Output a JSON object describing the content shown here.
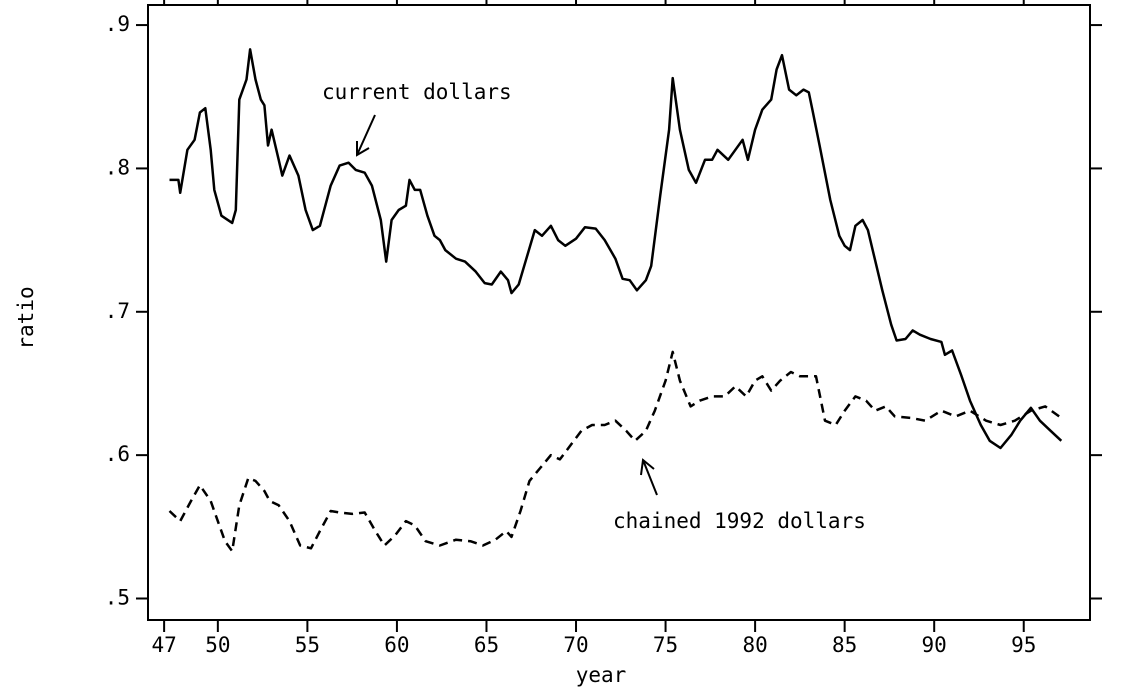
{
  "chart_data": {
    "type": "line",
    "xlabel": "year",
    "ylabel": "ratio",
    "xlim": [
      46.1,
      98.7
    ],
    "xticks": [
      47,
      50,
      55,
      60,
      65,
      70,
      75,
      80,
      85,
      90,
      95
    ],
    "ylim": [
      0.485,
      0.914
    ],
    "yticks": [
      {
        "value": 0.5,
        "label": ".5"
      },
      {
        "value": 0.6,
        "label": ".6"
      },
      {
        "value": 0.7,
        "label": ".7"
      },
      {
        "value": 0.8,
        "label": ".8"
      },
      {
        "value": 0.9,
        "label": ".9"
      }
    ],
    "grid": false,
    "series": [
      {
        "name": "current dollars",
        "color": "#000000",
        "dash": false,
        "x": [
          47.3,
          47.8,
          47.9,
          48.3,
          48.7,
          49.0,
          49.3,
          49.6,
          49.8,
          50.2,
          50.8,
          51.0,
          51.2,
          51.6,
          51.8,
          52.1,
          52.4,
          52.6,
          52.8,
          53.0,
          53.4,
          53.6,
          54.0,
          54.5,
          54.9,
          55.3,
          55.7,
          56.3,
          56.8,
          57.3,
          57.7,
          58.2,
          58.6,
          59.1,
          59.4,
          59.7,
          60.1,
          60.5,
          60.7,
          61.0,
          61.3,
          61.7,
          62.1,
          62.4,
          62.7,
          63.3,
          63.8,
          64.4,
          64.9,
          65.3,
          65.8,
          66.2,
          66.4,
          66.8,
          67.2,
          67.7,
          68.1,
          68.6,
          69.0,
          69.4,
          70.0,
          70.5,
          71.1,
          71.6,
          72.2,
          72.6,
          73.0,
          73.4,
          73.9,
          74.2,
          74.7,
          75.2,
          75.4,
          75.8,
          76.3,
          76.7,
          77.2,
          77.6,
          77.9,
          78.5,
          78.9,
          79.3,
          79.6,
          80.0,
          80.4,
          80.9,
          81.2,
          81.5,
          81.9,
          82.3,
          82.7,
          83.0,
          83.2,
          83.6,
          84.2,
          84.7,
          85.0,
          85.3,
          85.6,
          86.0,
          86.3,
          86.7,
          87.1,
          87.6,
          87.9,
          88.4,
          88.8,
          89.2,
          89.8,
          90.4,
          90.6,
          91.0,
          91.5,
          92.0,
          92.6,
          93.1,
          93.7,
          94.3,
          94.8,
          95.4,
          95.9,
          96.5,
          97.1
        ],
        "values": [
          0.792,
          0.792,
          0.783,
          0.813,
          0.82,
          0.839,
          0.842,
          0.813,
          0.785,
          0.767,
          0.762,
          0.771,
          0.848,
          0.862,
          0.883,
          0.862,
          0.848,
          0.844,
          0.816,
          0.827,
          0.806,
          0.795,
          0.809,
          0.795,
          0.771,
          0.757,
          0.76,
          0.788,
          0.802,
          0.804,
          0.799,
          0.797,
          0.788,
          0.764,
          0.735,
          0.764,
          0.771,
          0.774,
          0.792,
          0.785,
          0.785,
          0.767,
          0.753,
          0.75,
          0.743,
          0.737,
          0.735,
          0.728,
          0.72,
          0.719,
          0.728,
          0.722,
          0.713,
          0.719,
          0.736,
          0.757,
          0.753,
          0.76,
          0.75,
          0.746,
          0.751,
          0.759,
          0.758,
          0.75,
          0.737,
          0.723,
          0.722,
          0.715,
          0.722,
          0.732,
          0.781,
          0.827,
          0.863,
          0.827,
          0.799,
          0.79,
          0.806,
          0.806,
          0.813,
          0.806,
          0.813,
          0.82,
          0.806,
          0.827,
          0.841,
          0.848,
          0.869,
          0.879,
          0.855,
          0.851,
          0.855,
          0.853,
          0.841,
          0.816,
          0.778,
          0.753,
          0.746,
          0.743,
          0.76,
          0.764,
          0.757,
          0.736,
          0.715,
          0.691,
          0.68,
          0.681,
          0.687,
          0.684,
          0.681,
          0.679,
          0.67,
          0.673,
          0.656,
          0.638,
          0.621,
          0.61,
          0.605,
          0.614,
          0.624,
          0.633,
          0.624,
          0.617,
          0.61
        ]
      },
      {
        "name": "chained 1992 dollars",
        "color": "#000000",
        "dash": true,
        "x": [
          47.3,
          47.9,
          48.5,
          49.0,
          49.6,
          50.0,
          50.4,
          50.8,
          51.2,
          51.7,
          52.1,
          52.6,
          52.9,
          53.4,
          54.0,
          54.6,
          55.2,
          55.7,
          56.3,
          56.8,
          57.5,
          58.2,
          58.8,
          59.3,
          59.9,
          60.5,
          61.0,
          61.6,
          62.4,
          63.3,
          64.1,
          64.8,
          65.5,
          66.1,
          66.4,
          66.9,
          67.4,
          68.0,
          68.6,
          69.1,
          69.7,
          70.3,
          70.9,
          71.6,
          72.2,
          72.8,
          73.3,
          73.9,
          74.4,
          75.0,
          75.4,
          75.8,
          76.4,
          76.9,
          77.6,
          78.3,
          78.9,
          79.5,
          80.0,
          80.4,
          80.9,
          81.4,
          82.0,
          82.5,
          83.4,
          83.9,
          84.5,
          85.0,
          85.6,
          86.2,
          86.7,
          87.3,
          87.8,
          88.7,
          89.5,
          90.4,
          91.2,
          92.0,
          92.9,
          93.7,
          94.5,
          95.4,
          96.2,
          97.1
        ],
        "values": [
          0.561,
          0.554,
          0.568,
          0.579,
          0.568,
          0.554,
          0.54,
          0.533,
          0.565,
          0.584,
          0.582,
          0.575,
          0.568,
          0.565,
          0.554,
          0.537,
          0.535,
          0.547,
          0.561,
          0.56,
          0.559,
          0.56,
          0.547,
          0.537,
          0.544,
          0.554,
          0.551,
          0.54,
          0.537,
          0.541,
          0.54,
          0.537,
          0.541,
          0.547,
          0.543,
          0.561,
          0.582,
          0.591,
          0.6,
          0.597,
          0.607,
          0.617,
          0.621,
          0.621,
          0.624,
          0.617,
          0.61,
          0.617,
          0.631,
          0.652,
          0.672,
          0.652,
          0.634,
          0.638,
          0.641,
          0.641,
          0.648,
          0.641,
          0.652,
          0.655,
          0.645,
          0.652,
          0.658,
          0.655,
          0.655,
          0.624,
          0.621,
          0.631,
          0.641,
          0.638,
          0.631,
          0.634,
          0.627,
          0.626,
          0.624,
          0.631,
          0.627,
          0.631,
          0.624,
          0.621,
          0.624,
          0.631,
          0.634,
          0.626
        ]
      }
    ]
  }
}
